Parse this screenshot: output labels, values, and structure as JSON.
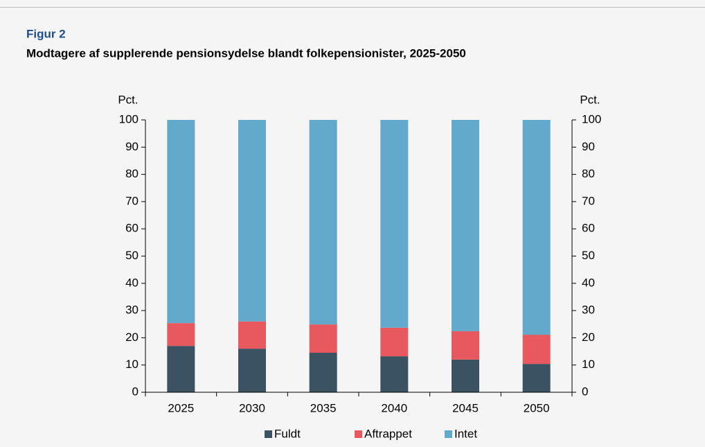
{
  "chart_data": {
    "type": "stacked_bar",
    "title": "Figur 2",
    "subtitle": "Modtagere af supplerende pensionsydelse blandt folkepensionister, 2025-2050",
    "ylabel": "Pct.",
    "y2label": "Pct.",
    "categories": [
      "2025",
      "2030",
      "2035",
      "2040",
      "2045",
      "2050"
    ],
    "series": [
      {
        "name": "Fuldt",
        "color": "#3b5262",
        "values": [
          17.0,
          16.0,
          14.5,
          13.2,
          12.0,
          10.4
        ]
      },
      {
        "name": "Aftrappet",
        "color": "#e8585f",
        "values": [
          8.4,
          10.0,
          10.4,
          10.5,
          10.4,
          10.7
        ]
      },
      {
        "name": "Intet",
        "color": "#63a9cc",
        "values": [
          74.6,
          74.0,
          75.1,
          76.3,
          77.6,
          78.9
        ]
      }
    ],
    "ylim": [
      0,
      100
    ],
    "yticks": [
      0,
      10,
      20,
      30,
      40,
      50,
      60,
      70,
      80,
      90,
      100
    ],
    "y2lim": [
      0,
      100
    ],
    "y2ticks": [
      0,
      10,
      20,
      30,
      40,
      50,
      60,
      70,
      80,
      90,
      100
    ],
    "legend": "bottom"
  }
}
